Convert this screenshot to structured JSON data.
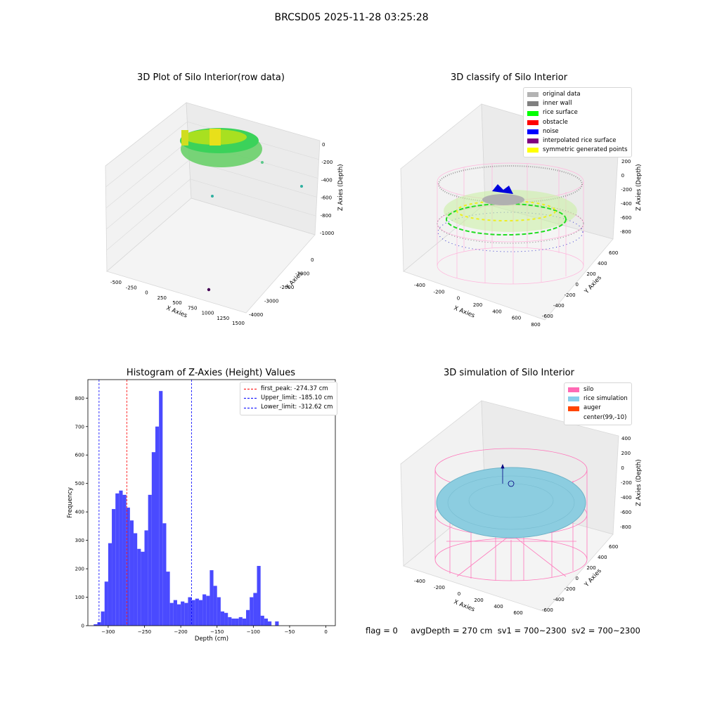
{
  "suptitle": "BRCSD05 2025-11-28 03:25:28",
  "panels": {
    "raw": {
      "title": "3D Plot of Silo Interior(row data)",
      "xlabel": "X Axies",
      "ylabel": "Y Axies",
      "zlabel": "Z Axies (Depth)",
      "xticks": [
        "-500",
        "-250",
        "0",
        "250",
        "500",
        "750",
        "1000",
        "1250",
        "1500"
      ],
      "yticks": [
        "0",
        "-1000",
        "-2000",
        "-3000",
        "-4000"
      ],
      "zticks": [
        "0",
        "-200",
        "-400",
        "-600",
        "-800",
        "-1000"
      ]
    },
    "classify": {
      "title": "3D classify of Silo Interior",
      "xlabel": "X Axies",
      "ylabel": "Y Axies",
      "zlabel": "Z Axies (Depth)",
      "xticks": [
        "-400",
        "-200",
        "0",
        "200",
        "400",
        "600",
        "800"
      ],
      "yticks": [
        "600",
        "400",
        "200",
        "0",
        "-200",
        "-400",
        "-600"
      ],
      "zticks": [
        "200",
        "0",
        "-200",
        "-400",
        "-600",
        "-800"
      ],
      "legend": [
        {
          "label": "original data",
          "color": "#b3b3b3"
        },
        {
          "label": "inner wall",
          "color": "#808080"
        },
        {
          "label": "rice surface",
          "color": "#00ff00"
        },
        {
          "label": "obstacle",
          "color": "#ff0000"
        },
        {
          "label": "noise",
          "color": "#0000ff"
        },
        {
          "label": "interpolated rice surface",
          "color": "#800080"
        },
        {
          "label": "symmetric generated points",
          "color": "#ffff00"
        }
      ]
    },
    "simulation": {
      "title": "3D simulation of Silo Interior",
      "xlabel": "X Axies",
      "ylabel": "Y Axies",
      "zlabel": "Z Axies (Depth)",
      "xticks": [
        "-400",
        "-200",
        "0",
        "200",
        "400",
        "600"
      ],
      "yticks": [
        "600",
        "400",
        "200",
        "0",
        "-200",
        "-400",
        "-600"
      ],
      "zticks": [
        "400",
        "200",
        "0",
        "-200",
        "-400",
        "-600",
        "-800"
      ],
      "legend": [
        {
          "label": "silo",
          "color": "#ff69b4"
        },
        {
          "label": "rice simulation",
          "color": "#87ceeb"
        },
        {
          "label": "auger",
          "color": "#ff4500"
        },
        {
          "label": "center(99,-10)",
          "color": ""
        }
      ]
    }
  },
  "chart_data": {
    "type": "bar",
    "title": "Histogram of Z-Axies (Height) Values",
    "xlabel": "Depth (cm)",
    "ylabel": "Frequency",
    "xlim": [
      -328,
      13
    ],
    "ylim": [
      0,
      865
    ],
    "xticks": [
      -300,
      -250,
      -200,
      -150,
      -100,
      -50,
      0
    ],
    "yticks": [
      0,
      100,
      200,
      300,
      400,
      500,
      600,
      700,
      800
    ],
    "bin_width": 5,
    "bin_starts": [
      -320,
      -315,
      -310,
      -305,
      -300,
      -295,
      -290,
      -285,
      -280,
      -275,
      -270,
      -265,
      -260,
      -255,
      -250,
      -245,
      -240,
      -235,
      -230,
      -225,
      -220,
      -215,
      -210,
      -205,
      -200,
      -195,
      -190,
      -185,
      -180,
      -175,
      -170,
      -165,
      -160,
      -155,
      -150,
      -145,
      -140,
      -135,
      -130,
      -125,
      -120,
      -115,
      -110,
      -105,
      -100,
      -95,
      -90,
      -85,
      -80,
      -75,
      -70,
      -65,
      -60,
      -55,
      -50,
      -45,
      -40,
      -35,
      -30,
      -25,
      -20,
      -15,
      -10,
      -5,
      0
    ],
    "values": [
      5,
      12,
      50,
      155,
      290,
      410,
      465,
      475,
      460,
      415,
      370,
      325,
      270,
      260,
      335,
      460,
      610,
      700,
      825,
      360,
      190,
      80,
      90,
      75,
      85,
      80,
      100,
      90,
      95,
      90,
      110,
      105,
      195,
      140,
      100,
      50,
      45,
      30,
      25,
      25,
      30,
      25,
      55,
      100,
      115,
      210,
      35,
      25,
      15,
      0,
      15,
      0,
      0,
      0,
      0,
      0,
      0,
      0,
      0,
      0,
      0,
      0,
      0,
      0,
      0
    ],
    "vlines": [
      {
        "label": "first_peak: -274.37 cm",
        "x": -274.37,
        "color": "#ff0000"
      },
      {
        "label": "Upper_limit: -185.10 cm",
        "x": -185.1,
        "color": "#0000ff"
      },
      {
        "label": "Lower_limit: -312.62 cm",
        "x": -312.62,
        "color": "#0000ff"
      }
    ],
    "bar_color": "#4a4aff"
  },
  "footer": {
    "flag": "flag = 0",
    "avg": "avgDepth = 270 cm",
    "sv1": "sv1 = 700~2300",
    "sv2": "sv2 = 700~2300"
  }
}
